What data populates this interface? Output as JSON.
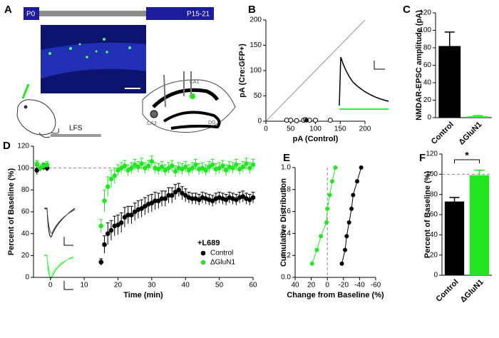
{
  "illustration": {
    "label": "A",
    "start": "P0",
    "end": "P15-21",
    "regions": [
      "CA1",
      "CA3",
      "DG"
    ]
  },
  "chart_data": [
    {
      "label": "B",
      "type": "scatter",
      "x_label": "pA (Control)",
      "y_label": "pA (Cre:GFP+)",
      "xlim": [
        0,
        200
      ],
      "xticks": [
        0,
        50,
        100,
        150,
        200
      ],
      "ylim": [
        0,
        200
      ],
      "yticks": [
        0,
        50,
        100,
        150,
        200
      ],
      "series": [
        {
          "marker": "open",
          "color": "#000000",
          "x": [
            42,
            50,
            62,
            76,
            80,
            88,
            100,
            130
          ],
          "values": [
            2,
            2,
            1,
            2,
            3,
            2,
            2,
            2
          ]
        },
        {
          "marker": "filled",
          "color": "#000000",
          "x": [
            82
          ],
          "values": [
            2
          ]
        }
      ]
    },
    {
      "label": "C",
      "type": "bar",
      "y_label": "NMDAR-EPSC amplitude (pA)",
      "categories": [
        "Control",
        "ΔGluN1"
      ],
      "values": [
        82,
        1.5
      ],
      "errors": [
        16,
        0.8
      ],
      "colors": [
        "#000000",
        "#22e622"
      ],
      "ylim": [
        0,
        120
      ],
      "yticks": [
        0,
        20,
        40,
        60,
        80,
        100,
        120
      ]
    },
    {
      "label": "D",
      "type": "scatter",
      "x_label": "Time (min)",
      "y_label": "Percent of Baseline (%)",
      "xlim": [
        -5,
        60
      ],
      "xticks": [
        0,
        10,
        20,
        30,
        40,
        50,
        60
      ],
      "ylim": [
        0,
        120
      ],
      "yticks": [
        0,
        20,
        40,
        60,
        80,
        100,
        120
      ],
      "reference_line": 100,
      "annotation": "LFS",
      "annotation_span": [
        0,
        15
      ],
      "legend_title": "+L689",
      "legend": "lower right",
      "series": [
        {
          "name": "Control",
          "color": "#000000",
          "x": [
            -4,
            -3,
            -2,
            -1,
            15,
            16,
            17,
            18,
            19,
            20,
            21,
            22,
            23,
            24,
            25,
            26,
            27,
            28,
            29,
            30,
            31,
            32,
            33,
            34,
            35,
            36,
            37,
            38,
            39,
            40,
            41,
            42,
            43,
            44,
            45,
            46,
            47,
            48,
            49,
            50,
            51,
            52,
            53,
            54,
            55,
            56,
            57,
            58,
            59,
            60
          ],
          "values": [
            98,
            100,
            101,
            100,
            14,
            30,
            40,
            43,
            47,
            48,
            50,
            55,
            57,
            57,
            60,
            62,
            63,
            65,
            67,
            68,
            70,
            70,
            72,
            72,
            75,
            75,
            78,
            80,
            77,
            75,
            73,
            72,
            72,
            71,
            73,
            72,
            71,
            70,
            72,
            73,
            72,
            71,
            73,
            72,
            71,
            73,
            74,
            72,
            71,
            73
          ],
          "errors": [
            4,
            3,
            3,
            3,
            3,
            8,
            10,
            9,
            9,
            9,
            9,
            9,
            8,
            8,
            8,
            8,
            8,
            8,
            8,
            8,
            8,
            7,
            7,
            7,
            7,
            7,
            7,
            6,
            6,
            6,
            5,
            5,
            5,
            5,
            5,
            5,
            5,
            5,
            5,
            5,
            5,
            5,
            5,
            5,
            5,
            5,
            5,
            5,
            5,
            5
          ]
        },
        {
          "name": "ΔGluN1",
          "color": "#22e622",
          "x": [
            -4,
            -3,
            -2,
            -1,
            15,
            16,
            17,
            18,
            19,
            20,
            21,
            22,
            23,
            24,
            25,
            26,
            27,
            28,
            29,
            30,
            31,
            32,
            33,
            34,
            35,
            36,
            37,
            38,
            39,
            40,
            41,
            42,
            43,
            44,
            45,
            46,
            47,
            48,
            49,
            50,
            51,
            52,
            53,
            54,
            55,
            56,
            57,
            58,
            59,
            60
          ],
          "values": [
            104,
            100,
            102,
            103,
            47,
            70,
            83,
            90,
            93,
            98,
            100,
            102,
            98,
            100,
            103,
            101,
            104,
            100,
            102,
            106,
            100,
            99,
            101,
            98,
            100,
            102,
            97,
            100,
            99,
            101,
            98,
            100,
            103,
            99,
            100,
            98,
            101,
            103,
            99,
            100,
            102,
            98,
            101,
            100,
            103,
            99,
            101,
            104,
            100,
            103
          ],
          "errors": [
            3,
            3,
            3,
            3,
            6,
            10,
            9,
            8,
            7,
            5,
            5,
            5,
            5,
            5,
            5,
            5,
            5,
            5,
            5,
            5,
            5,
            5,
            5,
            5,
            5,
            5,
            5,
            5,
            5,
            5,
            5,
            5,
            5,
            5,
            5,
            5,
            5,
            5,
            5,
            5,
            5,
            5,
            5,
            5,
            5,
            5,
            5,
            5,
            5,
            5
          ]
        }
      ]
    },
    {
      "label": "E",
      "type": "line",
      "x_label": "Change from Baseline (%)",
      "y_label": "Cumulative Distribution",
      "xlim": [
        40,
        -60
      ],
      "xticks": [
        40,
        20,
        0,
        -20,
        -40,
        -60
      ],
      "ylim": [
        0,
        1
      ],
      "yticks": [
        {
          "value": 0,
          "label": "0.0"
        },
        0.2,
        0.4,
        0.6,
        0.8,
        {
          "value": 1,
          "label": "1.0"
        }
      ],
      "reference_x": 0,
      "series": [
        {
          "color": "#22e622",
          "x": [
            19,
            13,
            8,
            1,
            0,
            -3,
            -6,
            -10
          ],
          "values": [
            0.125,
            0.25,
            0.375,
            0.5,
            0.625,
            0.75,
            0.875,
            1
          ]
        },
        {
          "color": "#000000",
          "x": [
            -18,
            -22,
            -24,
            -27,
            -30,
            -32,
            -37,
            -42
          ],
          "values": [
            0.125,
            0.25,
            0.375,
            0.5,
            0.625,
            0.75,
            0.875,
            1
          ]
        }
      ]
    },
    {
      "label": "F",
      "type": "bar",
      "y_label": "Percent of Baseline (%)",
      "categories": [
        "Control",
        "ΔGluN1"
      ],
      "values": [
        73,
        99
      ],
      "errors": [
        4,
        5
      ],
      "colors": [
        "#000000",
        "#22e622"
      ],
      "ylim": [
        0,
        120
      ],
      "yticks": [
        0,
        20,
        40,
        60,
        80,
        100,
        120
      ],
      "reference_line": 100,
      "annotation": "*"
    }
  ]
}
